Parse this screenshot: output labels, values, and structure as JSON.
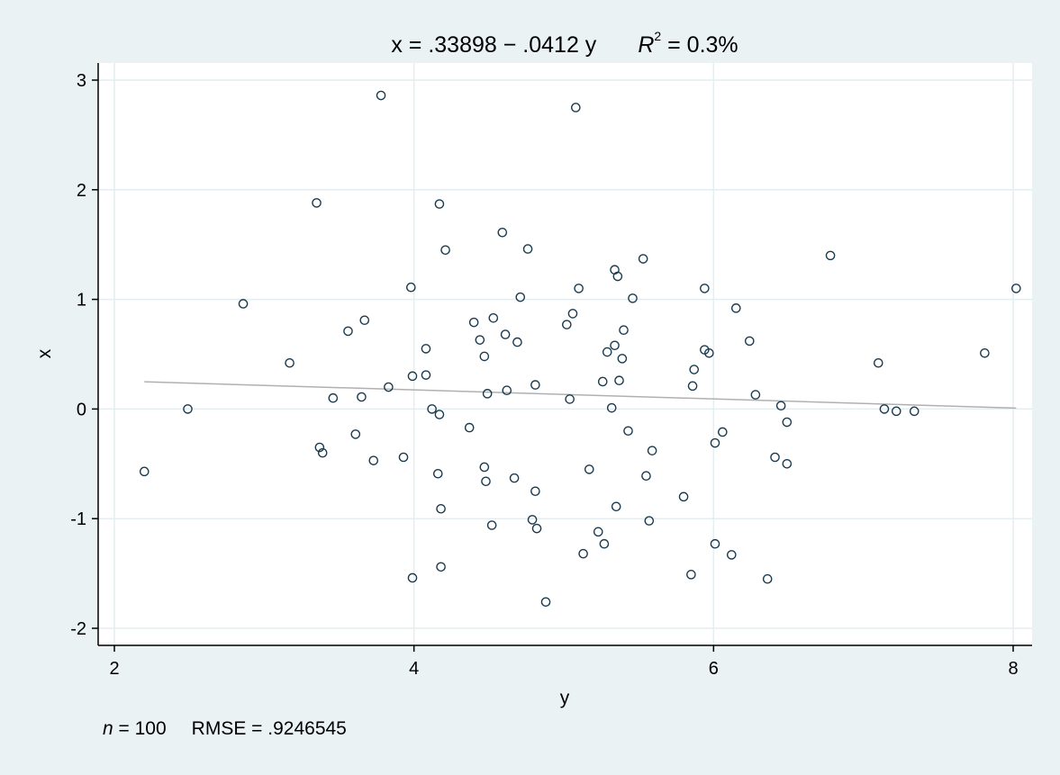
{
  "chart_data": {
    "type": "scatter",
    "title": {
      "prefix": "x = .33898 − .0412 y",
      "r_symbol": "R",
      "r_exponent": "2",
      "r_value": " = 0.3%"
    },
    "xlabel": "y",
    "ylabel": "x",
    "xlim": [
      2,
      8
    ],
    "ylim": [
      -2,
      3
    ],
    "xticks": [
      "2",
      "4",
      "6",
      "8"
    ],
    "yticks": [
      "3",
      "2",
      "1",
      "0",
      "-1",
      "-2"
    ],
    "grid": true,
    "footer": {
      "n_symbol": "n",
      "n_value": " = 100",
      "rmse": "RMSE =  .9246545"
    },
    "fit_line": {
      "intercept": 0.33898,
      "slope": -0.0412,
      "x_range": [
        2.2,
        8.02
      ]
    },
    "colors": {
      "background": "#eaf2f3",
      "plot_area": "#ffffff",
      "grid": "#e4eef0",
      "fit_line": "#b0b0b0",
      "marker": "#1a3b4f"
    },
    "points": [
      {
        "x": 2.2,
        "y": -0.57
      },
      {
        "x": 2.49,
        "y": 0.0
      },
      {
        "x": 2.86,
        "y": 0.96
      },
      {
        "x": 3.17,
        "y": 0.42
      },
      {
        "x": 3.35,
        "y": 1.88
      },
      {
        "x": 3.37,
        "y": -0.35
      },
      {
        "x": 3.39,
        "y": -0.4
      },
      {
        "x": 3.46,
        "y": 0.1
      },
      {
        "x": 3.56,
        "y": 0.71
      },
      {
        "x": 3.61,
        "y": -0.23
      },
      {
        "x": 3.65,
        "y": 0.11
      },
      {
        "x": 3.67,
        "y": 0.81
      },
      {
        "x": 3.73,
        "y": -0.47
      },
      {
        "x": 3.78,
        "y": 2.86
      },
      {
        "x": 3.83,
        "y": 0.2
      },
      {
        "x": 3.93,
        "y": -0.44
      },
      {
        "x": 3.98,
        "y": 1.11
      },
      {
        "x": 3.99,
        "y": 0.3
      },
      {
        "x": 3.99,
        "y": -1.54
      },
      {
        "x": 4.08,
        "y": 0.55
      },
      {
        "x": 4.08,
        "y": 0.31
      },
      {
        "x": 4.12,
        "y": 0.0
      },
      {
        "x": 4.16,
        "y": -0.59
      },
      {
        "x": 4.17,
        "y": 1.87
      },
      {
        "x": 4.17,
        "y": -0.05
      },
      {
        "x": 4.18,
        "y": -0.91
      },
      {
        "x": 4.18,
        "y": -1.44
      },
      {
        "x": 4.21,
        "y": 1.45
      },
      {
        "x": 4.37,
        "y": -0.17
      },
      {
        "x": 4.4,
        "y": 0.79
      },
      {
        "x": 4.44,
        "y": 0.63
      },
      {
        "x": 4.47,
        "y": 0.48
      },
      {
        "x": 4.47,
        "y": -0.53
      },
      {
        "x": 4.48,
        "y": -0.66
      },
      {
        "x": 4.49,
        "y": 0.14
      },
      {
        "x": 4.52,
        "y": -1.06
      },
      {
        "x": 4.53,
        "y": 0.83
      },
      {
        "x": 4.59,
        "y": 1.61
      },
      {
        "x": 4.61,
        "y": 0.68
      },
      {
        "x": 4.62,
        "y": 0.17
      },
      {
        "x": 4.67,
        "y": -0.63
      },
      {
        "x": 4.69,
        "y": 0.61
      },
      {
        "x": 4.71,
        "y": 1.02
      },
      {
        "x": 4.76,
        "y": 1.46
      },
      {
        "x": 4.79,
        "y": -1.01
      },
      {
        "x": 4.81,
        "y": 0.22
      },
      {
        "x": 4.81,
        "y": -0.75
      },
      {
        "x": 4.82,
        "y": -1.09
      },
      {
        "x": 4.88,
        "y": -1.76
      },
      {
        "x": 5.02,
        "y": 0.77
      },
      {
        "x": 5.04,
        "y": 0.09
      },
      {
        "x": 5.06,
        "y": 0.87
      },
      {
        "x": 5.08,
        "y": 2.75
      },
      {
        "x": 5.1,
        "y": 1.1
      },
      {
        "x": 5.13,
        "y": -1.32
      },
      {
        "x": 5.17,
        "y": -0.55
      },
      {
        "x": 5.23,
        "y": -1.12
      },
      {
        "x": 5.26,
        "y": 0.25
      },
      {
        "x": 5.27,
        "y": -1.23
      },
      {
        "x": 5.29,
        "y": 0.52
      },
      {
        "x": 5.32,
        "y": 0.01
      },
      {
        "x": 5.34,
        "y": 1.27
      },
      {
        "x": 5.34,
        "y": 0.58
      },
      {
        "x": 5.35,
        "y": -0.89
      },
      {
        "x": 5.36,
        "y": 1.21
      },
      {
        "x": 5.37,
        "y": 0.26
      },
      {
        "x": 5.39,
        "y": 0.46
      },
      {
        "x": 5.4,
        "y": 0.72
      },
      {
        "x": 5.43,
        "y": -0.2
      },
      {
        "x": 5.46,
        "y": 1.01
      },
      {
        "x": 5.53,
        "y": 1.37
      },
      {
        "x": 5.55,
        "y": -0.61
      },
      {
        "x": 5.57,
        "y": -1.02
      },
      {
        "x": 5.59,
        "y": -0.38
      },
      {
        "x": 5.8,
        "y": -0.8
      },
      {
        "x": 5.85,
        "y": -1.51
      },
      {
        "x": 5.86,
        "y": 0.21
      },
      {
        "x": 5.87,
        "y": 0.36
      },
      {
        "x": 5.94,
        "y": 1.1
      },
      {
        "x": 5.94,
        "y": 0.54
      },
      {
        "x": 5.97,
        "y": 0.51
      },
      {
        "x": 6.01,
        "y": -0.31
      },
      {
        "x": 6.01,
        "y": -1.23
      },
      {
        "x": 6.06,
        "y": -0.21
      },
      {
        "x": 6.12,
        "y": -1.33
      },
      {
        "x": 6.15,
        "y": 0.92
      },
      {
        "x": 6.24,
        "y": 0.62
      },
      {
        "x": 6.28,
        "y": 0.13
      },
      {
        "x": 6.36,
        "y": -1.55
      },
      {
        "x": 6.41,
        "y": -0.44
      },
      {
        "x": 6.45,
        "y": 0.03
      },
      {
        "x": 6.49,
        "y": -0.12
      },
      {
        "x": 6.49,
        "y": -0.5
      },
      {
        "x": 6.78,
        "y": 1.4
      },
      {
        "x": 7.1,
        "y": 0.42
      },
      {
        "x": 7.14,
        "y": 0.0
      },
      {
        "x": 7.22,
        "y": -0.02
      },
      {
        "x": 7.34,
        "y": -0.02
      },
      {
        "x": 7.81,
        "y": 0.51
      },
      {
        "x": 8.02,
        "y": 1.1
      }
    ]
  }
}
